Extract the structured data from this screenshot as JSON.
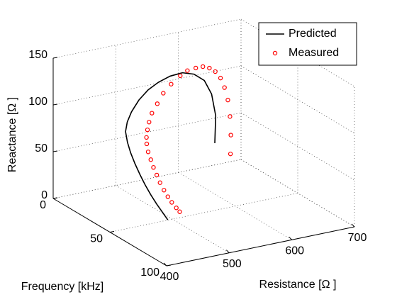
{
  "chart_data": {
    "type": "line3d",
    "xlabel": "Resistance [Ω ]",
    "ylabel": "Frequency [kHz]",
    "zlabel": "Reactance [Ω ]",
    "xlim": [
      400,
      700
    ],
    "xticks": [
      400,
      500,
      600,
      700
    ],
    "ylim": [
      0,
      100
    ],
    "yticks": [
      0,
      50,
      100
    ],
    "zlim": [
      0,
      150
    ],
    "zticks": [
      0,
      50,
      100,
      150
    ],
    "grid": true,
    "legend": "upper right",
    "series": [
      {
        "name": "Predicted",
        "color": "#000000",
        "style": "line",
        "x": [
          640,
          636,
          624,
          607,
          585,
          561,
          536,
          512,
          490,
          468,
          449,
          435,
          425,
          419,
          415,
          413,
          412,
          411,
          411,
          411,
          411,
          411
        ],
        "y": [
          10,
          13,
          16,
          19,
          22,
          25,
          28,
          31,
          34,
          38,
          42,
          46,
          50,
          55,
          60,
          65,
          70,
          75,
          80,
          85,
          90,
          95
        ],
        "z": [
          33,
          65,
          92,
          111,
          123,
          130,
          132,
          131,
          128,
          123,
          116,
          110,
          104,
          97,
          90,
          82,
          74,
          67,
          60,
          54,
          49,
          44
        ]
      },
      {
        "name": "Measured",
        "color": "#ff0000",
        "style": "marker",
        "x": [
          665,
          662,
          657,
          650,
          641,
          631,
          619,
          606,
          592,
          577,
          560,
          545,
          525,
          507,
          492,
          478,
          468,
          460,
          453,
          448,
          443,
          440,
          437,
          435,
          433,
          432,
          431,
          430,
          430,
          430
        ],
        "y": [
          10,
          12,
          14,
          16,
          18,
          20,
          22,
          24,
          26,
          28,
          30,
          32,
          35,
          38,
          41,
          44,
          47,
          50,
          53,
          56,
          60,
          64,
          68,
          72,
          76,
          80,
          84,
          88,
          92,
          95
        ],
        "z": [
          18,
          40,
          62,
          82,
          98,
          111,
          121,
          128,
          133,
          135,
          136,
          134,
          130,
          125,
          118,
          112,
          106,
          101,
          96,
          92,
          87,
          82,
          77,
          72,
          67,
          62,
          58,
          55,
          52,
          50
        ]
      }
    ]
  }
}
